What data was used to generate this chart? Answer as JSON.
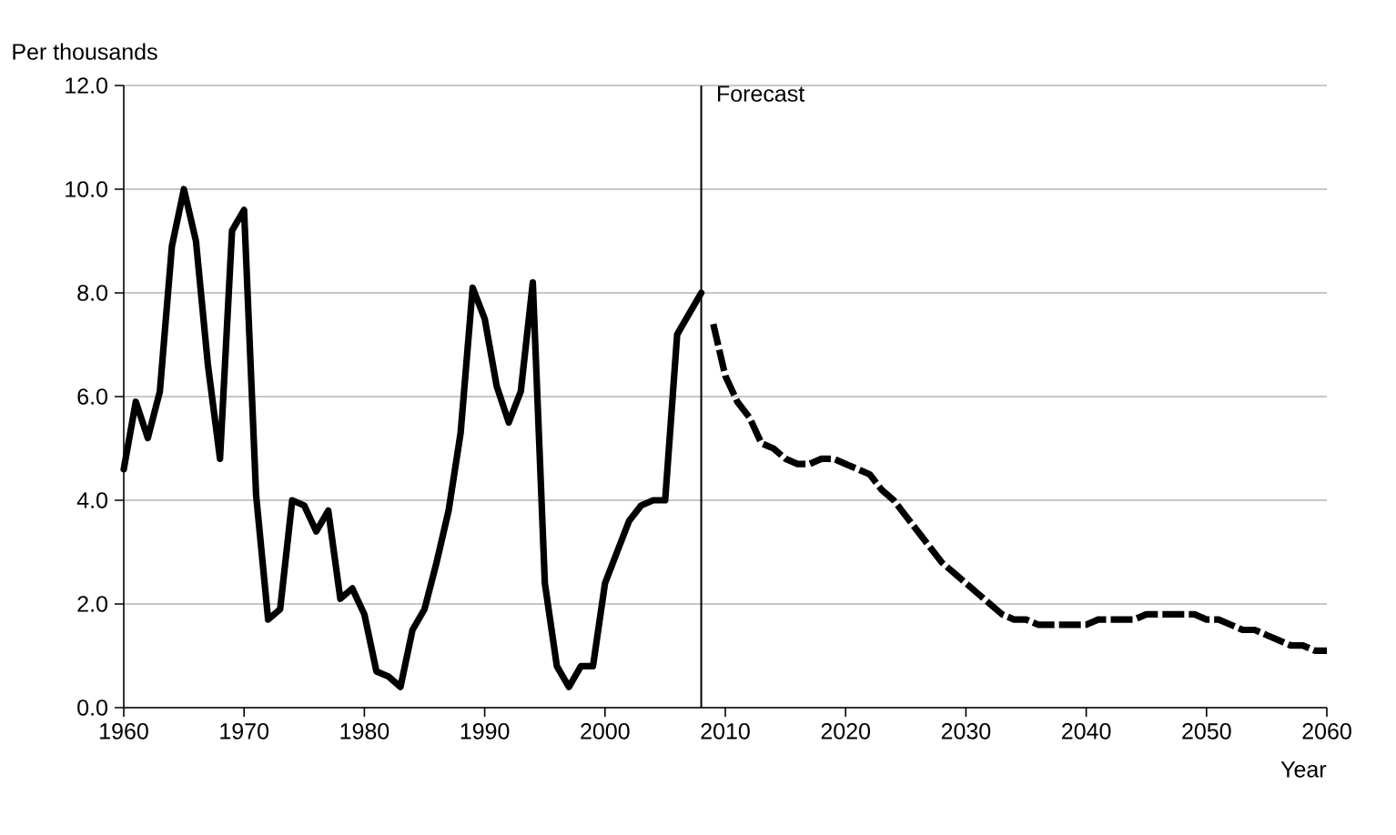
{
  "chart_data": {
    "type": "line",
    "ylabel": "Per thousands",
    "xlabel": "Year",
    "xlim": [
      1960,
      2060
    ],
    "xticks": [
      1960,
      1970,
      1980,
      1990,
      2000,
      2010,
      2020,
      2030,
      2040,
      2050,
      2060
    ],
    "ylim": [
      0,
      12
    ],
    "yticks": [
      {
        "value": 0,
        "label": "0.0"
      },
      {
        "value": 2,
        "label": "2.0"
      },
      {
        "value": 4,
        "label": "4.0"
      },
      {
        "value": 6,
        "label": "6.0"
      },
      {
        "value": 8,
        "label": "8.0"
      },
      {
        "value": 10,
        "label": "10.0"
      },
      {
        "value": 12,
        "label": "12.0"
      }
    ],
    "grid": "y",
    "series": [
      {
        "color": "#000000",
        "line_style": "solid",
        "x": [
          1960,
          1961,
          1962,
          1963,
          1964,
          1965,
          1966,
          1967,
          1968,
          1969,
          1970,
          1971,
          1972,
          1973,
          1974,
          1975,
          1976,
          1977,
          1978,
          1979,
          1980,
          1981,
          1982,
          1983,
          1984,
          1985,
          1986,
          1987,
          1988,
          1989,
          1990,
          1991,
          1992,
          1993,
          1994,
          1995,
          1996,
          1997,
          1998,
          1999,
          2000,
          2001,
          2002,
          2003,
          2004,
          2005,
          2006,
          2007,
          2008
        ],
        "values": [
          4.6,
          5.9,
          5.2,
          6.1,
          8.9,
          10.0,
          9.0,
          6.6,
          4.8,
          9.2,
          9.6,
          4.1,
          1.7,
          1.9,
          4.0,
          3.9,
          3.4,
          3.8,
          2.1,
          2.3,
          1.8,
          0.7,
          0.6,
          0.4,
          1.5,
          1.9,
          2.8,
          3.8,
          5.3,
          8.1,
          7.5,
          6.2,
          5.5,
          6.1,
          8.2,
          2.4,
          0.8,
          0.4,
          0.8,
          0.8,
          2.4,
          3.0,
          3.6,
          3.9,
          4.0,
          4.0,
          7.2,
          7.6,
          8.0
        ]
      },
      {
        "color": "#000000",
        "line_style": "dashed",
        "x": [
          2009,
          2010,
          2011,
          2012,
          2013,
          2014,
          2015,
          2016,
          2017,
          2018,
          2019,
          2020,
          2021,
          2022,
          2023,
          2024,
          2025,
          2026,
          2027,
          2028,
          2029,
          2030,
          2031,
          2032,
          2033,
          2034,
          2035,
          2036,
          2038,
          2040,
          2041,
          2042,
          2043,
          2044,
          2045,
          2046,
          2048,
          2049,
          2050,
          2051,
          2052,
          2053,
          2054,
          2055,
          2056,
          2057,
          2058,
          2059,
          2060
        ],
        "values": [
          7.4,
          6.4,
          5.9,
          5.6,
          5.1,
          5.0,
          4.8,
          4.7,
          4.7,
          4.8,
          4.8,
          4.7,
          4.6,
          4.5,
          4.2,
          4.0,
          3.7,
          3.4,
          3.1,
          2.8,
          2.6,
          2.4,
          2.2,
          2.0,
          1.8,
          1.7,
          1.7,
          1.6,
          1.6,
          1.6,
          1.7,
          1.7,
          1.7,
          1.7,
          1.8,
          1.8,
          1.8,
          1.8,
          1.7,
          1.7,
          1.6,
          1.5,
          1.5,
          1.4,
          1.3,
          1.2,
          1.2,
          1.1,
          1.1
        ]
      }
    ],
    "ref_lines": [
      {
        "axis": "x",
        "value": 2008,
        "label": "Forecast",
        "color": "#000000"
      }
    ]
  }
}
